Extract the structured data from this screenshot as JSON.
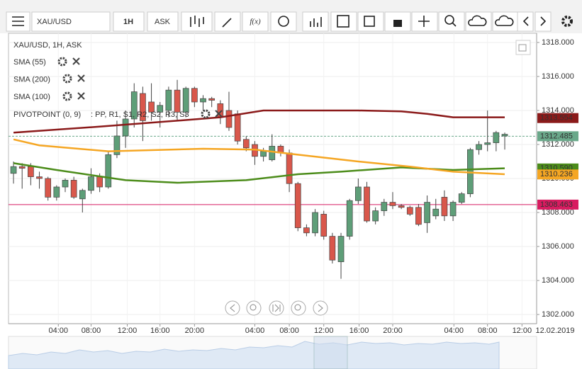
{
  "toolbar": {
    "symbol": "XAU/USD",
    "interval": "1H",
    "side": "ASK",
    "fx": "f(x)"
  },
  "legend": {
    "instrument": "XAU/USD, 1H, ASK",
    "pivot": "PIVOTPOINT (0, 9)",
    "pivot_levels": ": PP, R1, S1, R2, S2, R3, S3",
    "pivot_color": "#c0209a"
  },
  "chart_data": {
    "type": "candlestick",
    "up_color": "#5e9e78",
    "down_color": "#d9574b",
    "open": [
      1310.3,
      1310.7,
      1310.7,
      1310.1,
      1310.0,
      1308.9,
      1309.5,
      1309.9,
      1308.8,
      1309.3,
      1310.1,
      1309.5,
      1311.4,
      1312.5,
      1313.5,
      1315.0,
      1314.5,
      1313.9,
      1314.0,
      1315.2,
      1313.9,
      1315.3,
      1314.5,
      1314.7,
      1314.4,
      1314.0,
      1313.8,
      1312.3,
      1312.0,
      1311.3,
      1311.1,
      1311.9,
      1311.5,
      1309.7,
      1307.1,
      1306.8,
      1307.9,
      1306.6,
      1305.1,
      1306.6,
      1308.7,
      1309.5,
      1307.5,
      1308.1,
      1308.6,
      1308.4,
      1308.3,
      1308.3,
      1307.4,
      1307.8,
      1308.9,
      1307.8,
      1308.6,
      1309.1,
      1311.7,
      1312.0,
      1312.1,
      1312.5
    ],
    "high": [
      1311.0,
      1310.9,
      1310.9,
      1310.4,
      1310.1,
      1309.6,
      1310.0,
      1310.1,
      1309.4,
      1310.6,
      1310.3,
      1311.6,
      1313.4,
      1314.0,
      1315.6,
      1315.4,
      1315.6,
      1314.5,
      1315.4,
      1315.8,
      1315.4,
      1315.4,
      1314.9,
      1314.8,
      1314.6,
      1315.1,
      1314.0,
      1312.5,
      1312.2,
      1311.8,
      1312.6,
      1312.0,
      1311.7,
      1309.8,
      1307.3,
      1308.2,
      1308.1,
      1306.8,
      1306.8,
      1308.8,
      1310.0,
      1309.8,
      1308.3,
      1308.8,
      1309.2,
      1308.5,
      1308.4,
      1308.5,
      1309.0,
      1308.8,
      1309.3,
      1308.7,
      1309.2,
      1311.8,
      1312.2,
      1314.0,
      1312.8,
      1312.7
    ],
    "low": [
      1309.7,
      1309.4,
      1309.6,
      1309.4,
      1308.7,
      1308.7,
      1309.2,
      1308.8,
      1308.0,
      1309.1,
      1309.2,
      1309.4,
      1311.2,
      1311.8,
      1313.0,
      1312.2,
      1313.4,
      1313.0,
      1313.6,
      1313.4,
      1313.6,
      1314.2,
      1314.0,
      1314.2,
      1313.2,
      1312.8,
      1312.0,
      1311.6,
      1310.8,
      1311.0,
      1311.0,
      1311.3,
      1309.2,
      1306.9,
      1306.6,
      1306.6,
      1306.4,
      1305.0,
      1304.1,
      1306.4,
      1308.5,
      1307.4,
      1307.3,
      1307.8,
      1308.2,
      1308.2,
      1307.8,
      1307.2,
      1306.8,
      1307.6,
      1307.5,
      1307.5,
      1308.5,
      1308.9,
      1311.4,
      1311.6,
      1311.6,
      1311.7
    ],
    "close": [
      1310.7,
      1310.6,
      1310.1,
      1310.0,
      1308.9,
      1309.5,
      1309.9,
      1308.9,
      1309.3,
      1310.1,
      1309.5,
      1311.4,
      1312.5,
      1313.5,
      1315.1,
      1313.4,
      1313.9,
      1314.3,
      1315.2,
      1313.9,
      1315.3,
      1314.5,
      1314.7,
      1314.6,
      1313.6,
      1313.0,
      1312.2,
      1311.8,
      1311.3,
      1311.6,
      1311.9,
      1311.5,
      1309.7,
      1307.1,
      1306.8,
      1308.0,
      1306.6,
      1305.2,
      1306.6,
      1308.7,
      1309.5,
      1307.5,
      1308.1,
      1308.6,
      1308.4,
      1308.3,
      1307.9,
      1307.3,
      1308.6,
      1308.2,
      1307.8,
      1308.6,
      1309.1,
      1311.7,
      1312.0,
      1312.1,
      1312.7,
      1312.6
    ],
    "series": [
      {
        "name": "SMA (55)",
        "color": "#4c8c1a",
        "x": [
          0,
          5,
          13,
          19,
          27,
          33,
          38,
          45,
          51,
          57
        ],
        "values": [
          1310.9,
          1310.5,
          1309.9,
          1309.75,
          1309.9,
          1310.25,
          1310.4,
          1310.65,
          1310.5,
          1310.6
        ]
      },
      {
        "name": "SMA (200)",
        "color": "#8b1a1a",
        "x": [
          0,
          10,
          19,
          24,
          29,
          35,
          40,
          45,
          48,
          51,
          57
        ],
        "values": [
          1312.7,
          1313.05,
          1313.4,
          1313.6,
          1314.0,
          1314.0,
          1314.0,
          1313.95,
          1313.8,
          1313.6,
          1313.6
        ]
      },
      {
        "name": "SMA (100)",
        "color": "#f5a623",
        "x": [
          0,
          3,
          11,
          22,
          28,
          33,
          40,
          46,
          51,
          57
        ],
        "values": [
          1312.3,
          1311.95,
          1311.6,
          1311.75,
          1311.7,
          1311.4,
          1311.0,
          1310.7,
          1310.4,
          1310.25
        ]
      }
    ],
    "markers": [
      {
        "value": 1313.554,
        "label": "1313.554",
        "color": "#8b1a1a",
        "line": false
      },
      {
        "value": 1312.485,
        "label": "1312.485",
        "color": "#6aa88a",
        "line": "dash"
      },
      {
        "value": 1310.59,
        "label": "1310.590",
        "color": "#4c8c1a",
        "line": false
      },
      {
        "value": 1310.236,
        "label": "1310.236",
        "color": "#f5a623",
        "line": false
      },
      {
        "value": 1308.463,
        "label": "1308.463",
        "color": "#d81b60",
        "line": "solid"
      }
    ],
    "xlim": [
      -0.58,
      60.7
    ],
    "xticks": [
      {
        "value": 5.2,
        "label": "04:00"
      },
      {
        "value": 9,
        "label": "08:00"
      },
      {
        "value": 13.2,
        "label": "12:00"
      },
      {
        "value": 17,
        "label": "16:00"
      },
      {
        "value": 21,
        "label": "20:00"
      },
      {
        "value": 28,
        "label": "04:00"
      },
      {
        "value": 32,
        "label": "08:00"
      },
      {
        "value": 36,
        "label": "12:00"
      },
      {
        "value": 40.1,
        "label": "16:00"
      },
      {
        "value": 44,
        "label": "20:00"
      },
      {
        "value": 51.1,
        "label": "04:00"
      },
      {
        "value": 55,
        "label": "08:00"
      },
      {
        "value": 59,
        "label": "12:00"
      }
    ],
    "date_label": "12.02.2019",
    "ylim": [
      1301.46,
      1318.54
    ],
    "yticks": [
      {
        "value": 1302,
        "label": "1302.000"
      },
      {
        "value": 1304,
        "label": "1304.000"
      },
      {
        "value": 1306,
        "label": "1306.000"
      },
      {
        "value": 1308,
        "label": "1308.000"
      },
      {
        "value": 1310,
        "label": "1310.000"
      },
      {
        "value": 1312,
        "label": "1312.000"
      },
      {
        "value": 1314,
        "label": "1314.000"
      },
      {
        "value": 1316,
        "label": "1316.000"
      },
      {
        "value": 1318,
        "label": "1318.000"
      }
    ],
    "grid": true
  }
}
